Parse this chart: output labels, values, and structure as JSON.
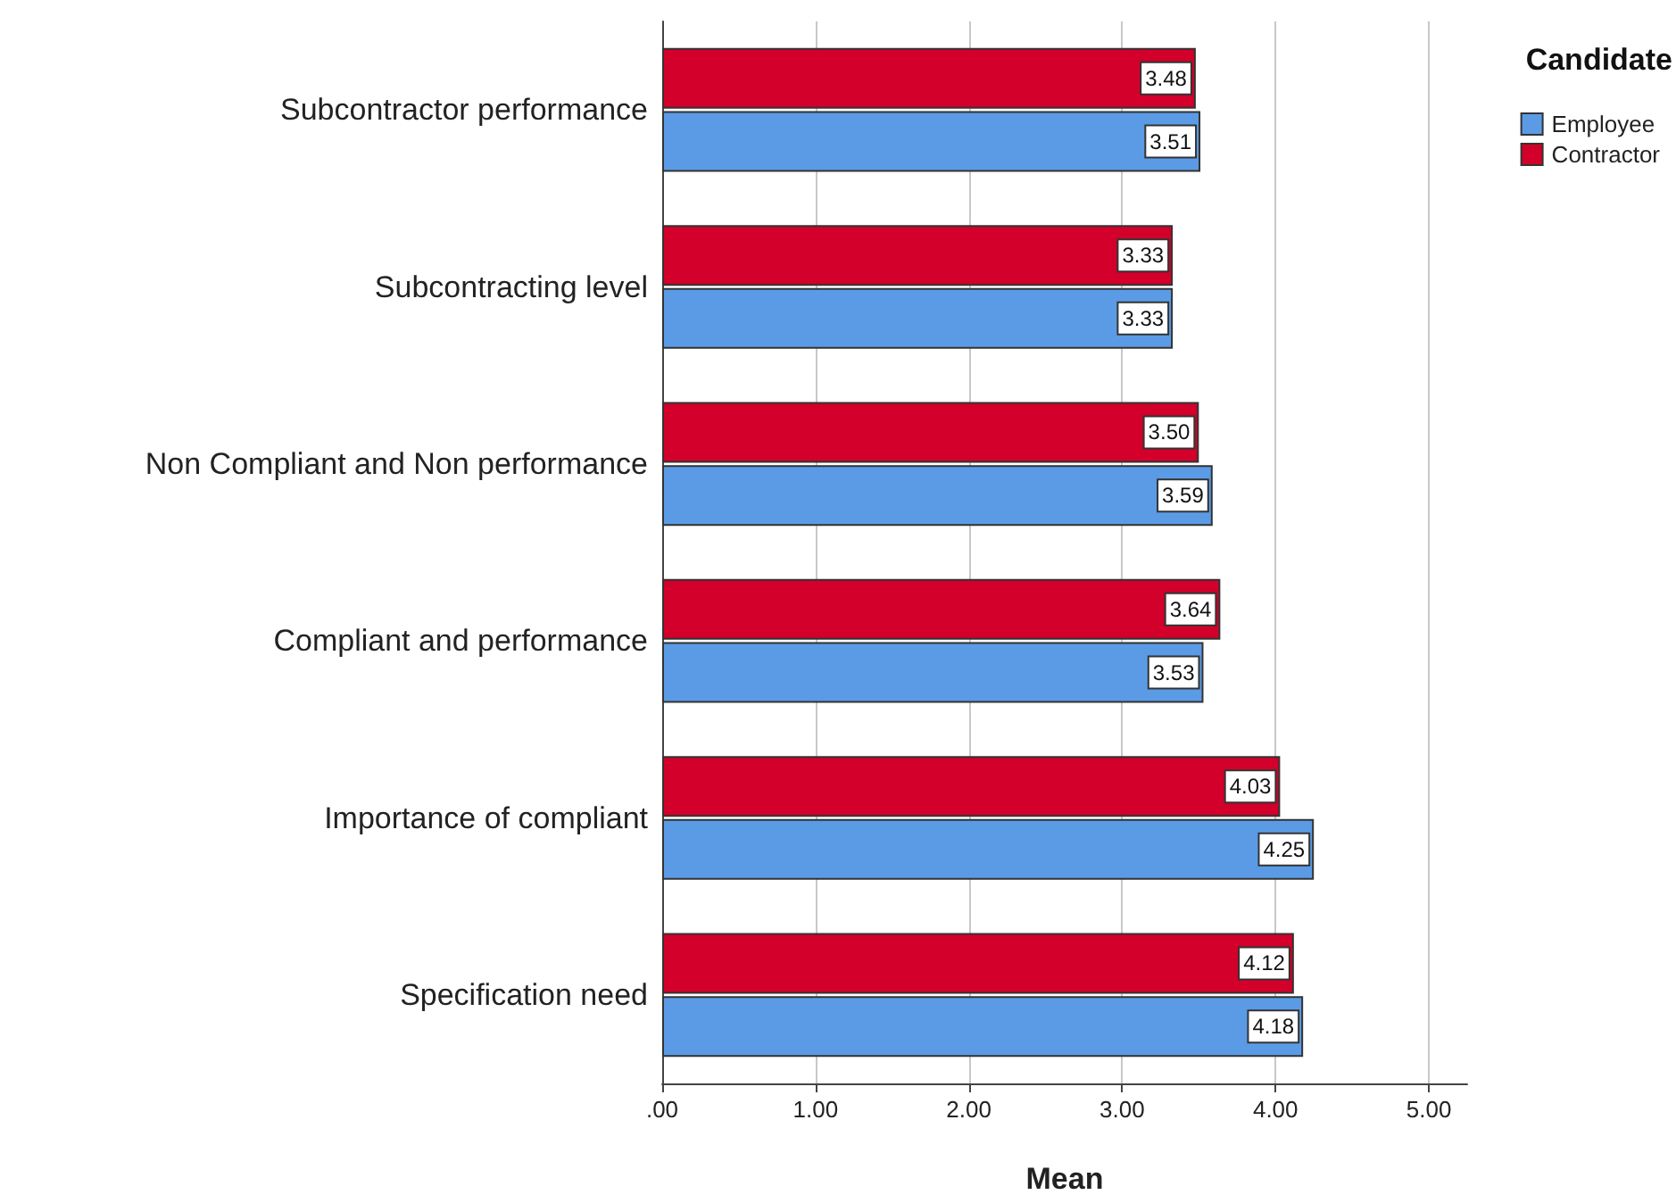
{
  "chart_data": {
    "type": "bar",
    "orientation": "horizontal",
    "xlabel": "Mean",
    "legend_title": "Candidate",
    "legend": "top right",
    "grid": "x",
    "categories": [
      "Subcontractor performance",
      "Subcontracting level",
      "Non Compliant and Non performance",
      "Compliant and performance",
      "Importance of compliant",
      "Specification need"
    ],
    "series": [
      {
        "name": "Employee",
        "color": "#5b9be6",
        "values": [
          3.51,
          3.33,
          3.59,
          3.53,
          4.25,
          4.18
        ],
        "value_labels": [
          "3.51",
          "3.33",
          "3.59",
          "3.53",
          "4.25",
          "4.18"
        ]
      },
      {
        "name": "Contractor",
        "color": "#d2002a",
        "values": [
          3.48,
          3.33,
          3.5,
          3.64,
          4.03,
          4.12
        ],
        "value_labels": [
          "3.48",
          "3.33",
          "3.50",
          "3.64",
          "4.03",
          "4.12"
        ]
      }
    ],
    "xlim": [
      0,
      5.25
    ],
    "xticks": [
      {
        "value": 0,
        "label": ".00"
      },
      {
        "value": 1,
        "label": "1.00"
      },
      {
        "value": 2,
        "label": "2.00"
      },
      {
        "value": 3,
        "label": "3.00"
      },
      {
        "value": 4,
        "label": "4.00"
      },
      {
        "value": 5,
        "label": "5.00"
      }
    ]
  }
}
